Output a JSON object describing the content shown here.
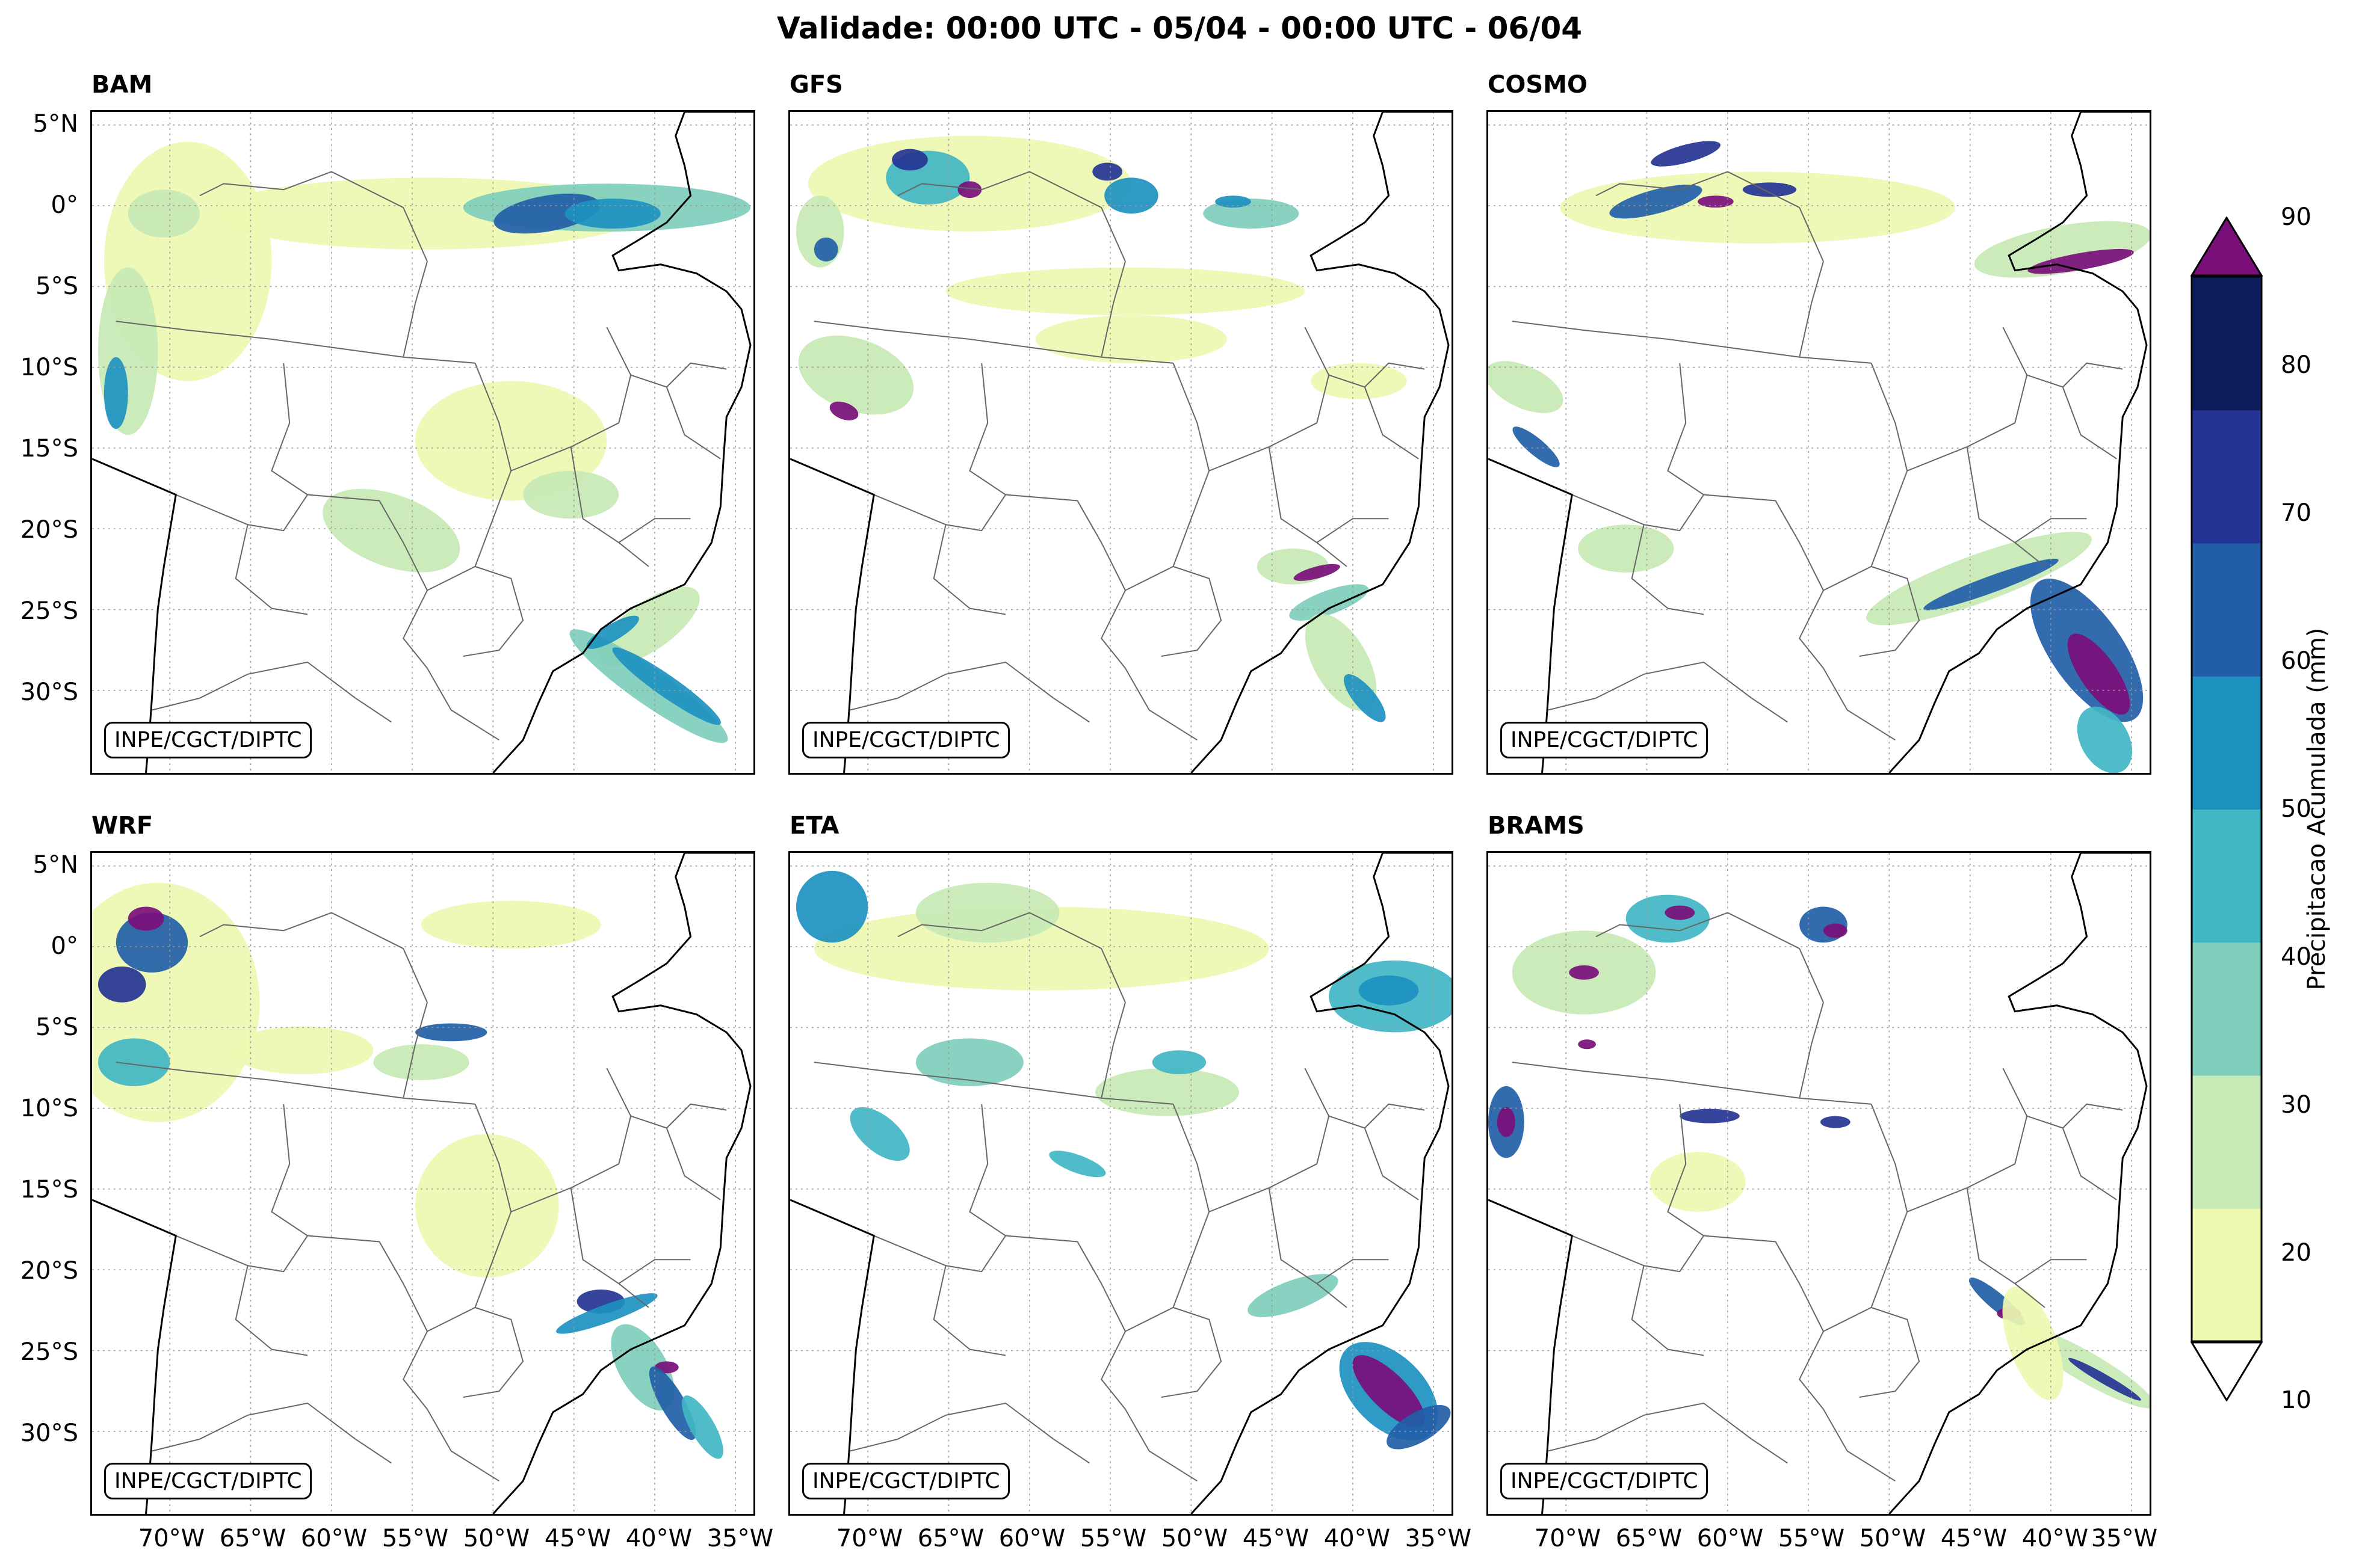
{
  "title": "Validade: 00:00 UTC - 05/04 - 00:00 UTC - 06/04",
  "credit": "INPE/CGCT/DIPTC",
  "lat_ticks": [
    "5°N",
    "0°",
    "5°S",
    "10°S",
    "15°S",
    "20°S",
    "25°S",
    "30°S"
  ],
  "lon_ticks": [
    "70°W",
    "65°W",
    "60°W",
    "55°W",
    "50°W",
    "45°W",
    "40°W",
    "35°W"
  ],
  "panels": [
    {
      "name": "BAM"
    },
    {
      "name": "GFS"
    },
    {
      "name": "COSMO"
    },
    {
      "name": "WRF"
    },
    {
      "name": "ETA"
    },
    {
      "name": "BRAMS"
    }
  ],
  "colorbar": {
    "label": "Precipitacao Acumulada (mm)",
    "ticks": [
      "10",
      "20",
      "30",
      "40",
      "50",
      "60",
      "70",
      "80",
      "90"
    ],
    "colors": [
      "#edf8b1",
      "#c7e9b4",
      "#7fcdbb",
      "#41b6c4",
      "#1d91c0",
      "#225ea8",
      "#253494",
      "#0c1d5c"
    ],
    "over_color": "#7a0f7a"
  },
  "colors": {
    "coast": "#000000",
    "border": "#666666",
    "grid": "#999999"
  }
}
